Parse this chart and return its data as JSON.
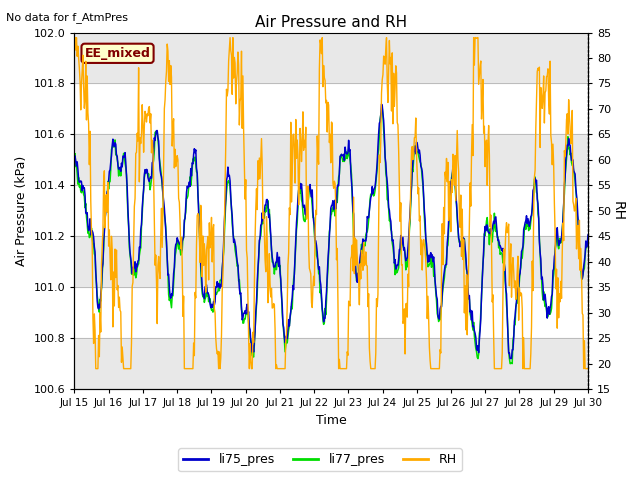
{
  "title": "Air Pressure and RH",
  "top_left_text": "No data for f_AtmPres",
  "annotation_text": "EE_mixed",
  "annotation_bg": "#ffffcc",
  "annotation_border": "#800000",
  "annotation_text_color": "#800000",
  "xlabel": "Time",
  "ylabel_left": "Air Pressure (kPa)",
  "ylabel_right": "RH",
  "ylim_left": [
    100.6,
    102.0
  ],
  "ylim_right": [
    15,
    85
  ],
  "yticks_left": [
    100.6,
    100.8,
    101.0,
    101.2,
    101.4,
    101.6,
    101.8,
    102.0
  ],
  "yticks_right": [
    15,
    20,
    25,
    30,
    35,
    40,
    45,
    50,
    55,
    60,
    65,
    70,
    75,
    80,
    85
  ],
  "xtick_labels": [
    "Jul 15",
    "Jul 16",
    "Jul 17",
    "Jul 18",
    "Jul 19",
    "Jul 20",
    "Jul 21",
    "Jul 22",
    "Jul 23",
    "Jul 24",
    "Jul 25",
    "Jul 26",
    "Jul 27",
    "Jul 28",
    "Jul 29",
    "Jul 30"
  ],
  "color_li75": "#0000cc",
  "color_li77": "#00dd00",
  "color_rh": "#ffaa00",
  "bg_band_color": "#e8e8e8",
  "grid_color": "#bbbbbb",
  "legend_labels": [
    "li75_pres",
    "li77_pres",
    "RH"
  ],
  "seed": 12345
}
